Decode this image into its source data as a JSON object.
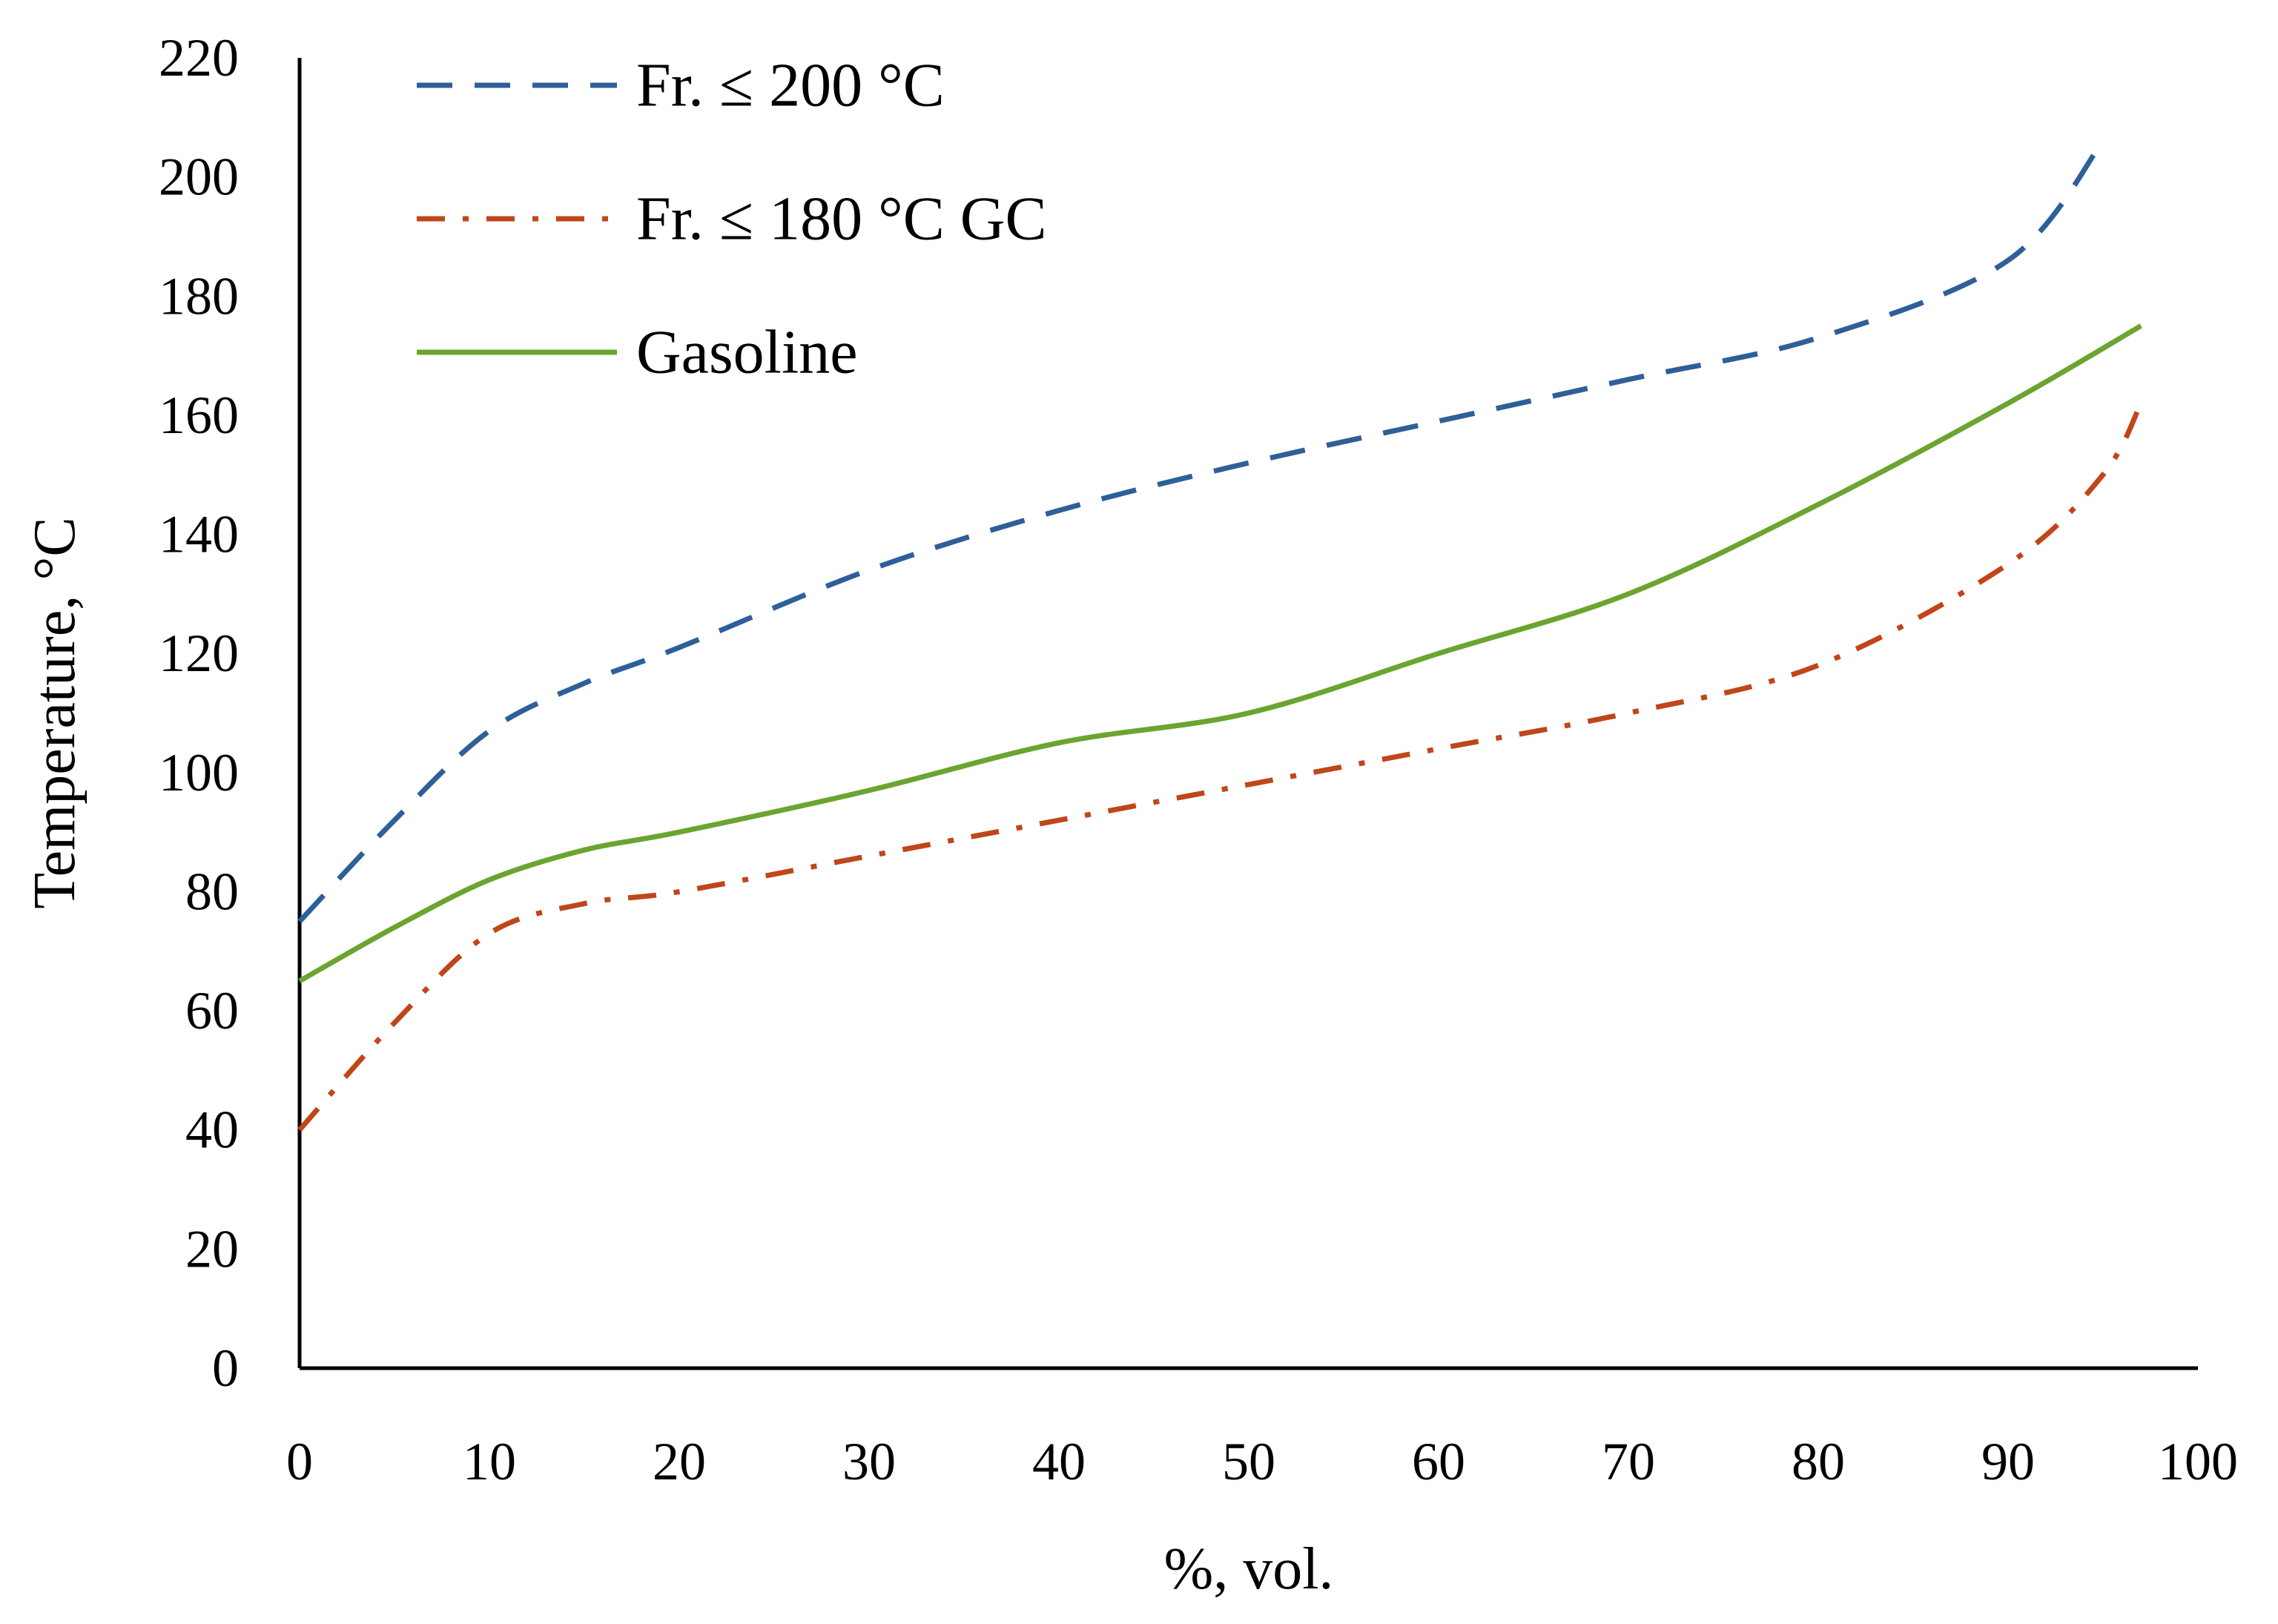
{
  "chart_data": {
    "type": "line",
    "title": "",
    "xlabel": "%, vol.",
    "ylabel": "Temperature, °C",
    "xlim": [
      0,
      100
    ],
    "ylim": [
      0,
      220
    ],
    "xticks": [
      0,
      10,
      20,
      30,
      40,
      50,
      60,
      70,
      80,
      90,
      100
    ],
    "yticks": [
      0,
      20,
      40,
      60,
      80,
      100,
      120,
      140,
      160,
      180,
      200,
      220
    ],
    "grid": false,
    "legend_position": "top-left",
    "series": [
      {
        "name": "Fr. ≤ 200 °C",
        "color": "#2E5F99",
        "style": "dashed",
        "x": [
          0,
          5,
          10,
          15,
          20,
          30,
          40,
          50,
          60,
          70,
          80,
          90,
          95
        ],
        "y": [
          75,
          92,
          107,
          115,
          121,
          134,
          144,
          152,
          159,
          166,
          173,
          186,
          206
        ]
      },
      {
        "name": "Fr. ≤ 180 °C GC",
        "color": "#C0461A",
        "style": "dash-dot",
        "x": [
          0,
          5,
          10,
          15,
          20,
          30,
          40,
          50,
          60,
          70,
          80,
          90,
          95,
          97
        ],
        "y": [
          40,
          58,
          73,
          78,
          80,
          86,
          92,
          98,
          104,
          110,
          118,
          135,
          150,
          162
        ]
      },
      {
        "name": "Gasoline",
        "color": "#6BA430",
        "style": "solid",
        "x": [
          0,
          5,
          10,
          15,
          20,
          30,
          40,
          50,
          60,
          70,
          80,
          90,
          97
        ],
        "y": [
          65,
          74,
          82,
          87,
          90,
          97,
          105,
          110,
          120,
          130,
          145,
          162,
          175
        ]
      }
    ]
  }
}
